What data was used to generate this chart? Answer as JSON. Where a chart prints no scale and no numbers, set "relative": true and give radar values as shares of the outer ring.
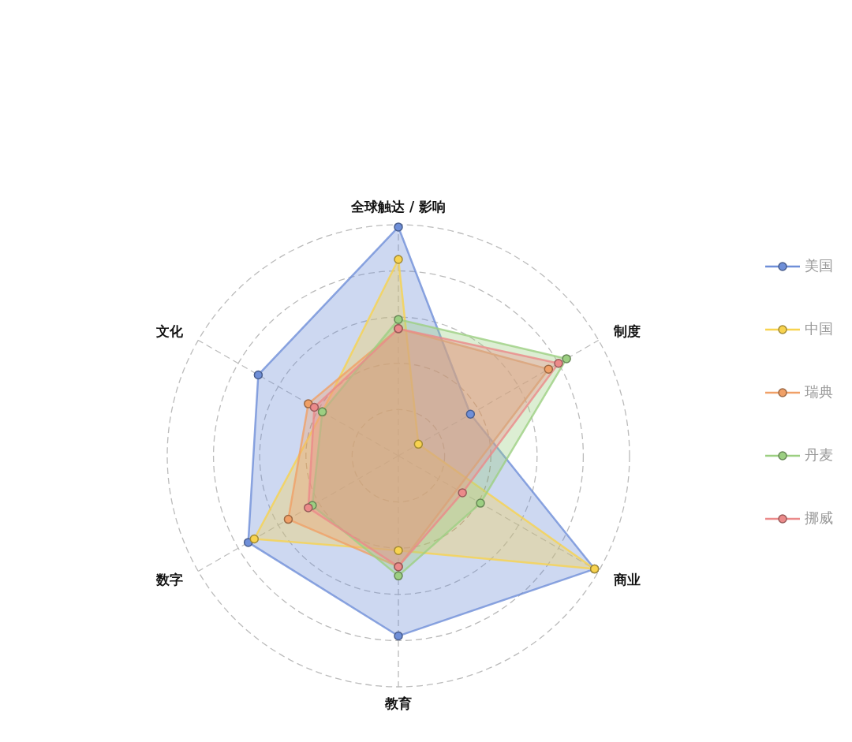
{
  "chart_data": {
    "type": "radar",
    "relative": true,
    "categories": [
      "全球触达 / 影响",
      "制度",
      "商业",
      "教育",
      "数字",
      "文化"
    ],
    "series": [
      {
        "name": "美国",
        "color": "#6f8fd8",
        "values": [
          0.99,
          0.36,
          0.98,
          0.78,
          0.75,
          0.7
        ]
      },
      {
        "name": "中国",
        "color": "#f8d34f",
        "values": [
          0.85,
          0.1,
          0.98,
          0.41,
          0.72,
          0.38
        ]
      },
      {
        "name": "瑞典",
        "color": "#f0a067",
        "values": [
          0.55,
          0.75,
          null,
          0.48,
          0.55,
          0.45
        ]
      },
      {
        "name": "丹麦",
        "color": "#9ccf82",
        "values": [
          0.59,
          0.84,
          0.41,
          0.52,
          0.43,
          0.38
        ]
      },
      {
        "name": "挪威",
        "color": "#eb8a8a",
        "values": [
          0.55,
          0.8,
          0.32,
          0.48,
          0.45,
          0.42
        ]
      }
    ],
    "grid": true,
    "legend": "right",
    "marker": "circle"
  }
}
